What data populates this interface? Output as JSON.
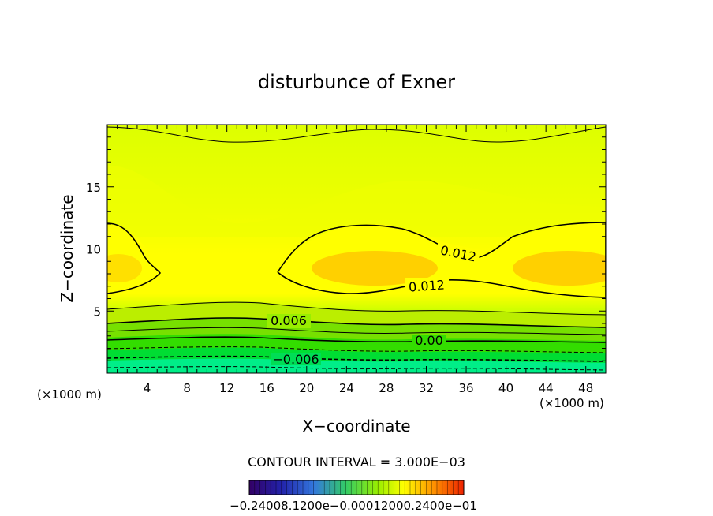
{
  "chart_data": {
    "type": "contour",
    "title": "disturbunce of Exner",
    "xlabel": "X−coordinate",
    "ylabel": "Z−coordinate",
    "x_unit_label": "(×1000 m)",
    "y_unit_label": "(×1000 m)",
    "xlim": [
      0,
      50
    ],
    "ylim": [
      0,
      20
    ],
    "x_ticks": [
      4,
      8,
      12,
      16,
      20,
      24,
      28,
      32,
      36,
      40,
      44,
      48
    ],
    "y_ticks": [
      5,
      10,
      15
    ],
    "contour_interval_text": "CONTOUR INTERVAL = 3.000E−03",
    "contour_labels": [
      {
        "text": "0.012",
        "x": 33.5,
        "z": 9.6
      },
      {
        "text": "0.012",
        "x": 32.0,
        "z": 7.1
      },
      {
        "text": "0.006",
        "x": 18.0,
        "z": 4.2
      },
      {
        "text": "0.00",
        "x": 32.0,
        "z": 2.7
      },
      {
        "text": "−0.006",
        "x": 19.0,
        "z": 1.0
      }
    ],
    "colorbar_ticklabels_text": "−0.24008.1200e−0.00012000.2400e−01",
    "colors": {
      "high": "#ffd000",
      "mid_high": "#ffff00",
      "mid": "#ccff00",
      "low_mid": "#33e600",
      "low": "#00ffaa"
    }
  }
}
